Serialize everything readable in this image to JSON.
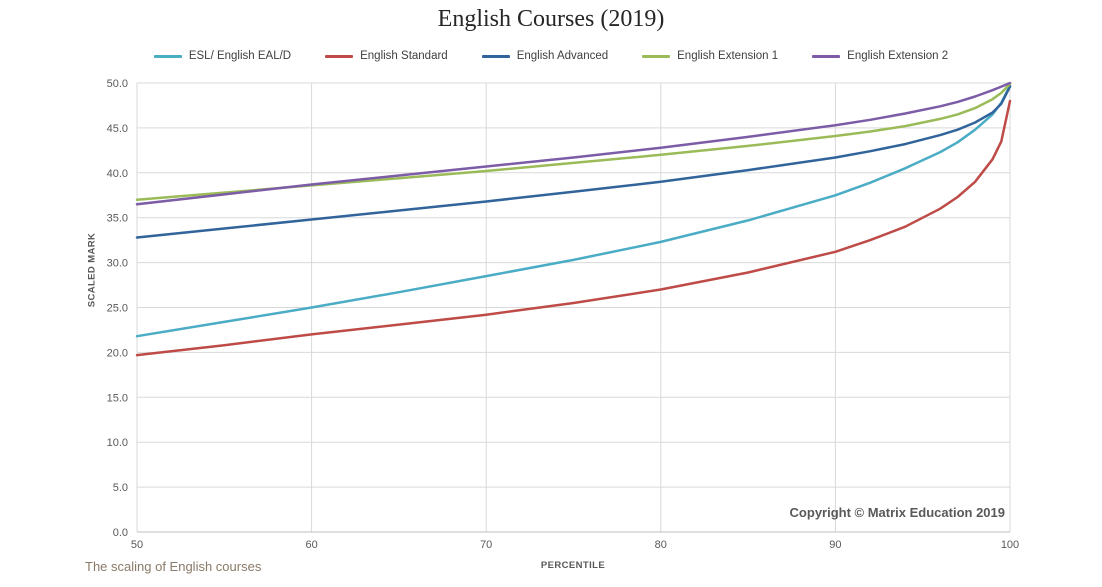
{
  "chart_data": {
    "type": "line",
    "title": "English Courses (2019)",
    "xlabel": "PERCENTILE",
    "ylabel": "SCALED MARK",
    "xlim": [
      50,
      100
    ],
    "ylim": [
      0,
      50
    ],
    "x_ticks": [
      50,
      60,
      70,
      80,
      90,
      100
    ],
    "y_ticks": [
      0,
      5,
      10,
      15,
      20,
      25,
      30,
      35,
      40,
      45,
      50
    ],
    "y_tick_decimals": 1,
    "grid": true,
    "legend_position": "top",
    "x": [
      50,
      55,
      60,
      65,
      70,
      75,
      80,
      85,
      90,
      92,
      94,
      96,
      97,
      98,
      99,
      99.5,
      100
    ],
    "series": [
      {
        "name": "ESL/ English EAL/D",
        "color": "#4BACC6",
        "values": [
          21.8,
          23.4,
          25.0,
          26.7,
          28.5,
          30.3,
          32.3,
          34.7,
          37.5,
          38.9,
          40.5,
          42.3,
          43.4,
          44.8,
          46.5,
          47.8,
          49.7
        ]
      },
      {
        "name": "English Standard",
        "color": "#BE4B48",
        "values": [
          19.7,
          20.8,
          22.0,
          23.1,
          24.2,
          25.5,
          27.0,
          28.9,
          31.2,
          32.5,
          34.0,
          36.0,
          37.3,
          39.0,
          41.5,
          43.5,
          48.0
        ]
      },
      {
        "name": "English Advanced",
        "color": "#31649B",
        "values": [
          32.8,
          33.8,
          34.8,
          35.8,
          36.8,
          37.9,
          39.0,
          40.3,
          41.7,
          42.4,
          43.2,
          44.2,
          44.8,
          45.6,
          46.7,
          47.7,
          49.6
        ]
      },
      {
        "name": "English Extension 1",
        "color": "#9BBB59",
        "values": [
          37.0,
          37.8,
          38.6,
          39.4,
          40.2,
          41.1,
          42.0,
          43.0,
          44.1,
          44.6,
          45.2,
          46.0,
          46.5,
          47.2,
          48.2,
          48.9,
          49.9
        ]
      },
      {
        "name": "English Extension 2",
        "color": "#7C5CA6",
        "values": [
          36.5,
          37.6,
          38.7,
          39.7,
          40.7,
          41.7,
          42.8,
          44.0,
          45.3,
          45.9,
          46.6,
          47.4,
          47.9,
          48.5,
          49.2,
          49.6,
          50.0
        ]
      }
    ],
    "copyright": "Copyright © Matrix Education 2019"
  },
  "footer": {
    "caption": "The scaling of English courses"
  },
  "colors": {
    "grid": "#d9d9d9",
    "axis": "#bfbfbf",
    "tick_text": "#595959",
    "title_text": "#262626"
  }
}
